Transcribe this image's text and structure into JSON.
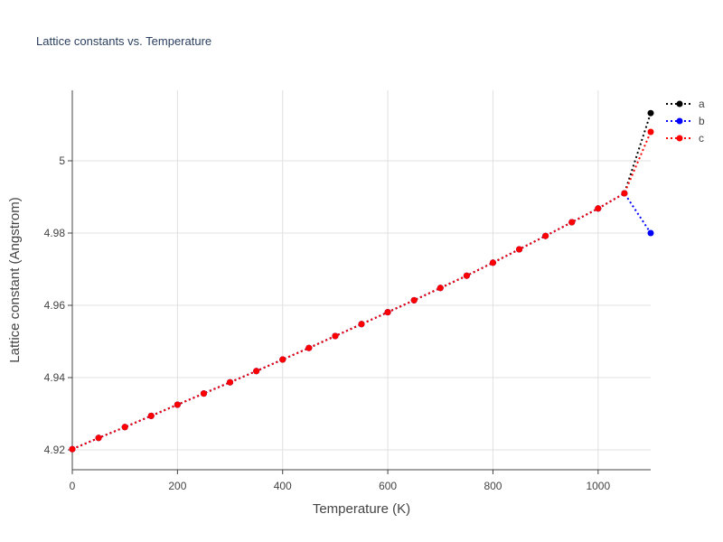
{
  "chart_data": {
    "type": "line",
    "title": "Lattice constants vs. Temperature",
    "xlabel": "Temperature (K)",
    "ylabel": "Lattice constant (Angstrom)",
    "xlim": [
      0,
      1100
    ],
    "ylim": [
      4.9145,
      5.0195
    ],
    "xticks": [
      0,
      200,
      400,
      600,
      800,
      1000
    ],
    "xtick_labels": [
      "0",
      "200",
      "400",
      "600",
      "800",
      "1000"
    ],
    "yticks": [
      4.92,
      4.94,
      4.96,
      4.98,
      5.0
    ],
    "ytick_labels": [
      "4.92",
      "4.94",
      "4.96",
      "4.98",
      "5"
    ],
    "grid": true,
    "legend_position": "top-right",
    "x": [
      0,
      50,
      100,
      150,
      200,
      250,
      300,
      350,
      400,
      450,
      500,
      550,
      600,
      650,
      700,
      750,
      800,
      850,
      900,
      950,
      1000,
      1050,
      1100
    ],
    "series": [
      {
        "name": "a",
        "color": "#000000",
        "values": [
          4.9202,
          4.9233,
          4.9263,
          4.9294,
          4.9325,
          4.9356,
          4.9387,
          4.9418,
          4.945,
          4.9482,
          4.9515,
          4.9548,
          4.9581,
          4.9614,
          4.9648,
          4.9682,
          4.9718,
          4.9755,
          4.9792,
          4.983,
          4.9868,
          4.991,
          5.0132
        ]
      },
      {
        "name": "b",
        "color": "#0000ff",
        "values": [
          4.9202,
          4.9233,
          4.9263,
          4.9294,
          4.9325,
          4.9356,
          4.9387,
          4.9418,
          4.945,
          4.9482,
          4.9515,
          4.9548,
          4.9581,
          4.9614,
          4.9648,
          4.9682,
          4.9718,
          4.9755,
          4.9792,
          4.983,
          4.9868,
          4.991,
          4.98
        ]
      },
      {
        "name": "c",
        "color": "#ff0000",
        "values": [
          4.9202,
          4.9233,
          4.9263,
          4.9294,
          4.9325,
          4.9356,
          4.9387,
          4.9418,
          4.945,
          4.9482,
          4.9515,
          4.9548,
          4.9581,
          4.9614,
          4.9648,
          4.9682,
          4.9718,
          4.9755,
          4.9792,
          4.983,
          4.9868,
          4.991,
          5.008
        ]
      }
    ]
  }
}
